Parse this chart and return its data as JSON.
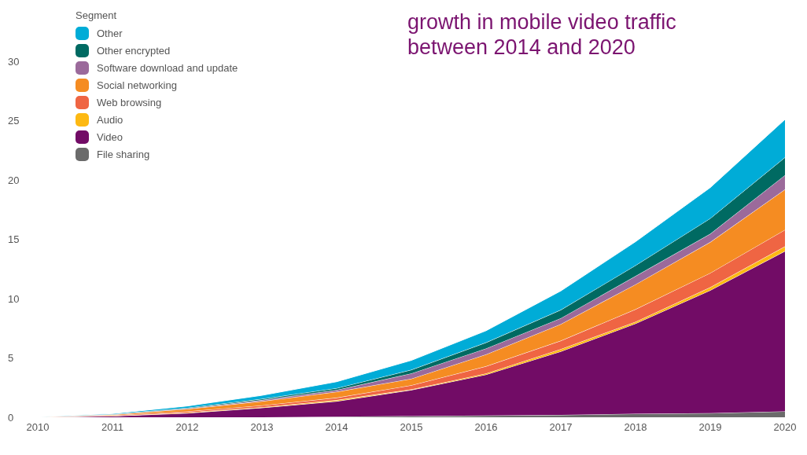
{
  "chart_data": {
    "type": "area",
    "stacked": true,
    "title": "growth in mobile video traffic between 2014 and 2020",
    "legend_title": "Segment",
    "legend": "top left",
    "grid": false,
    "x": [
      2010,
      2011,
      2012,
      2013,
      2014,
      2015,
      2016,
      2017,
      2018,
      2019,
      2020
    ],
    "xlim": [
      2010,
      2020
    ],
    "xticks": [
      2010,
      2011,
      2012,
      2013,
      2014,
      2015,
      2016,
      2017,
      2018,
      2019,
      2020
    ],
    "ylim": [
      0,
      30
    ],
    "yticks": [
      0,
      5,
      10,
      15,
      20,
      25,
      30
    ],
    "series": [
      {
        "name": "File sharing",
        "color": "#6b6b6b",
        "values": [
          0,
          0,
          0,
          0,
          0.05,
          0.1,
          0.15,
          0.2,
          0.3,
          0.35,
          0.5
        ]
      },
      {
        "name": "Video",
        "color": "#720c66",
        "values": [
          0.02,
          0.1,
          0.35,
          0.8,
          1.3,
          2.2,
          3.45,
          5.35,
          7.6,
          10.35,
          13.5
        ]
      },
      {
        "name": "Audio",
        "color": "#fdb913",
        "values": [
          0,
          0.02,
          0.05,
          0.05,
          0.1,
          0.05,
          0.1,
          0.2,
          0.15,
          0.26,
          0.4
        ]
      },
      {
        "name": "Web browsing",
        "color": "#ef6543",
        "values": [
          0.02,
          0.05,
          0.1,
          0.15,
          0.2,
          0.35,
          0.6,
          0.7,
          1.05,
          1.2,
          1.4
        ]
      },
      {
        "name": "Social networking",
        "color": "#f58c22",
        "values": [
          0,
          0.05,
          0.2,
          0.35,
          0.5,
          0.55,
          1.0,
          1.4,
          2.1,
          2.6,
          3.4
        ]
      },
      {
        "name": "Software download and update",
        "color": "#9b6a9b",
        "values": [
          0,
          0.02,
          0.05,
          0.1,
          0.15,
          0.45,
          0.5,
          0.5,
          0.7,
          0.7,
          1.2
        ]
      },
      {
        "name": "Other encrypted",
        "color": "#006a62",
        "values": [
          0,
          0.02,
          0.05,
          0.1,
          0.15,
          0.3,
          0.5,
          0.7,
          0.9,
          1.3,
          1.5
        ]
      },
      {
        "name": "Other",
        "color": "#00acd7",
        "values": [
          0,
          0.05,
          0.15,
          0.3,
          0.55,
          0.8,
          1.0,
          1.6,
          2.0,
          2.6,
          3.2
        ]
      }
    ]
  }
}
